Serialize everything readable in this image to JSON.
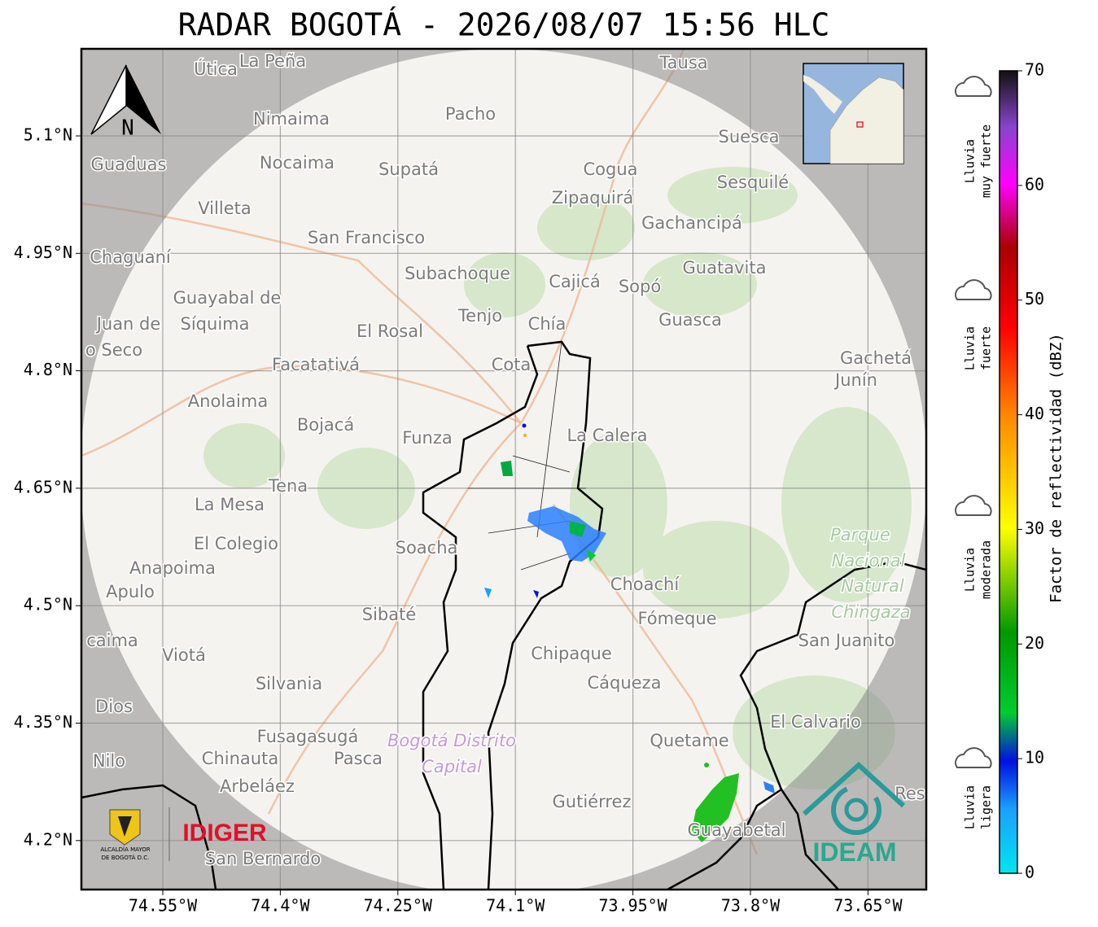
{
  "header": {
    "title": "RADAR BOGOTÁ - 2026/08/07 15:56 HLC"
  },
  "map": {
    "lon_ticks": [
      "74.55°W",
      "74.4°W",
      "74.25°W",
      "74.1°W",
      "73.95°W",
      "73.8°W",
      "73.65°W"
    ],
    "lat_ticks": [
      "5.1°N",
      "4.95°N",
      "4.8°N",
      "4.65°N",
      "4.5°N",
      "4.35°N",
      "4.2°N"
    ],
    "north_label": "N",
    "places": [
      "Útica",
      "La Peña",
      "Tausa",
      "Pacho",
      "Nimaima",
      "Suesca",
      "Guaduas",
      "Nocaima",
      "Supatá",
      "Cogua",
      "Sesquilé",
      "Zipaquirá",
      "Villeta",
      "Gachancipá",
      "San Francisco",
      "Chaguaní",
      "Guatavita",
      "Subachoque",
      "Cajicá",
      "Sopó",
      "Guayabal de",
      "Tenjo",
      "Síquima",
      "Juan de",
      "Chía",
      "Guasca",
      "El Rosal",
      "o Seco",
      "Cota",
      "Gachetá",
      "Facatativá",
      "Junín",
      "Anolaima",
      "Bojacá",
      "Funza",
      "La Calera",
      "Tena",
      "La Mesa",
      "Parque",
      "Soacha",
      "El Colegio",
      "Nacional",
      "Anapoima",
      "Natural",
      "Choachí",
      "Apulo",
      "Chingaza",
      "Sibaté",
      "Fómeque",
      "San Juanito",
      "caima",
      "Chipaque",
      "Viotá",
      "Cáqueza",
      "Silvania",
      "Dios",
      "El Calvario",
      "Fusagasugá",
      "Bogotá Distrito",
      "Quetame",
      "Nilo",
      "Chinauta",
      "Pasca",
      "Capital",
      "Arbeláez",
      "Gutiérrez",
      "Res",
      "Guayabetal",
      "San Bernardo"
    ]
  },
  "colorbar": {
    "label": "Factor de reflectividad (dBZ)",
    "lim": [
      0,
      70
    ],
    "ticks": [
      0,
      10,
      20,
      30,
      40,
      50,
      60,
      70
    ]
  },
  "legend": [
    {
      "lines": [
        "Lluvia",
        "muy fuerte"
      ]
    },
    {
      "lines": [
        "Lluvia",
        "fuerte"
      ]
    },
    {
      "lines": [
        "Lluvia",
        "moderada"
      ]
    },
    {
      "lines": [
        "Lluvia",
        "ligera"
      ]
    }
  ],
  "logos": {
    "alcaldia": [
      "ALCALDÍA MAYOR",
      "DE BOGOTÁ D.C."
    ],
    "idiger": "IDIGER",
    "ideam": "IDEAM"
  }
}
